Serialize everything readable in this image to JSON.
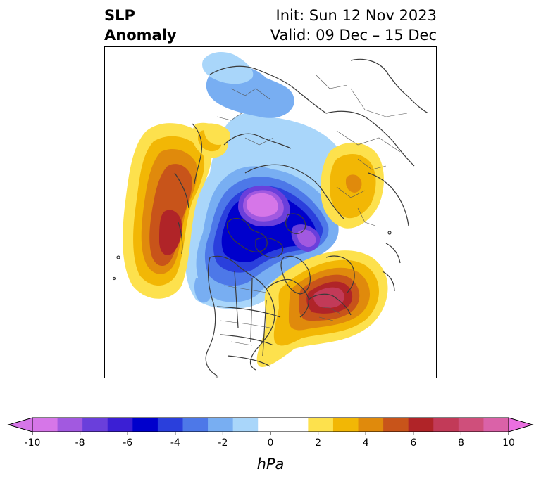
{
  "title": {
    "left_line1": "SLP",
    "left_line2": "Anomaly",
    "right_line1": "Init: Sun 12 Nov 2023",
    "right_line2": "Valid: 09 Dec – 15 Dec"
  },
  "colorbar": {
    "unit_label": "hPa",
    "ticks": [
      "-10",
      "-8",
      "-6",
      "-4",
      "-2",
      "0",
      "2",
      "4",
      "6",
      "8",
      "10"
    ],
    "colors": [
      "#d676e8",
      "#a259e0",
      "#6a3fdb",
      "#3b1fd4",
      "#0000cc",
      "#2a3fdc",
      "#4d78e8",
      "#78aef2",
      "#a9d6fa",
      "#ffffff",
      "#ffffff",
      "#fde14d",
      "#f2b705",
      "#e08a0c",
      "#c8541a",
      "#b02428",
      "#c23a58",
      "#cf4f7b",
      "#da62a8"
    ],
    "under_color": "#d676e8",
    "over_color": "#ea6fe0"
  }
}
